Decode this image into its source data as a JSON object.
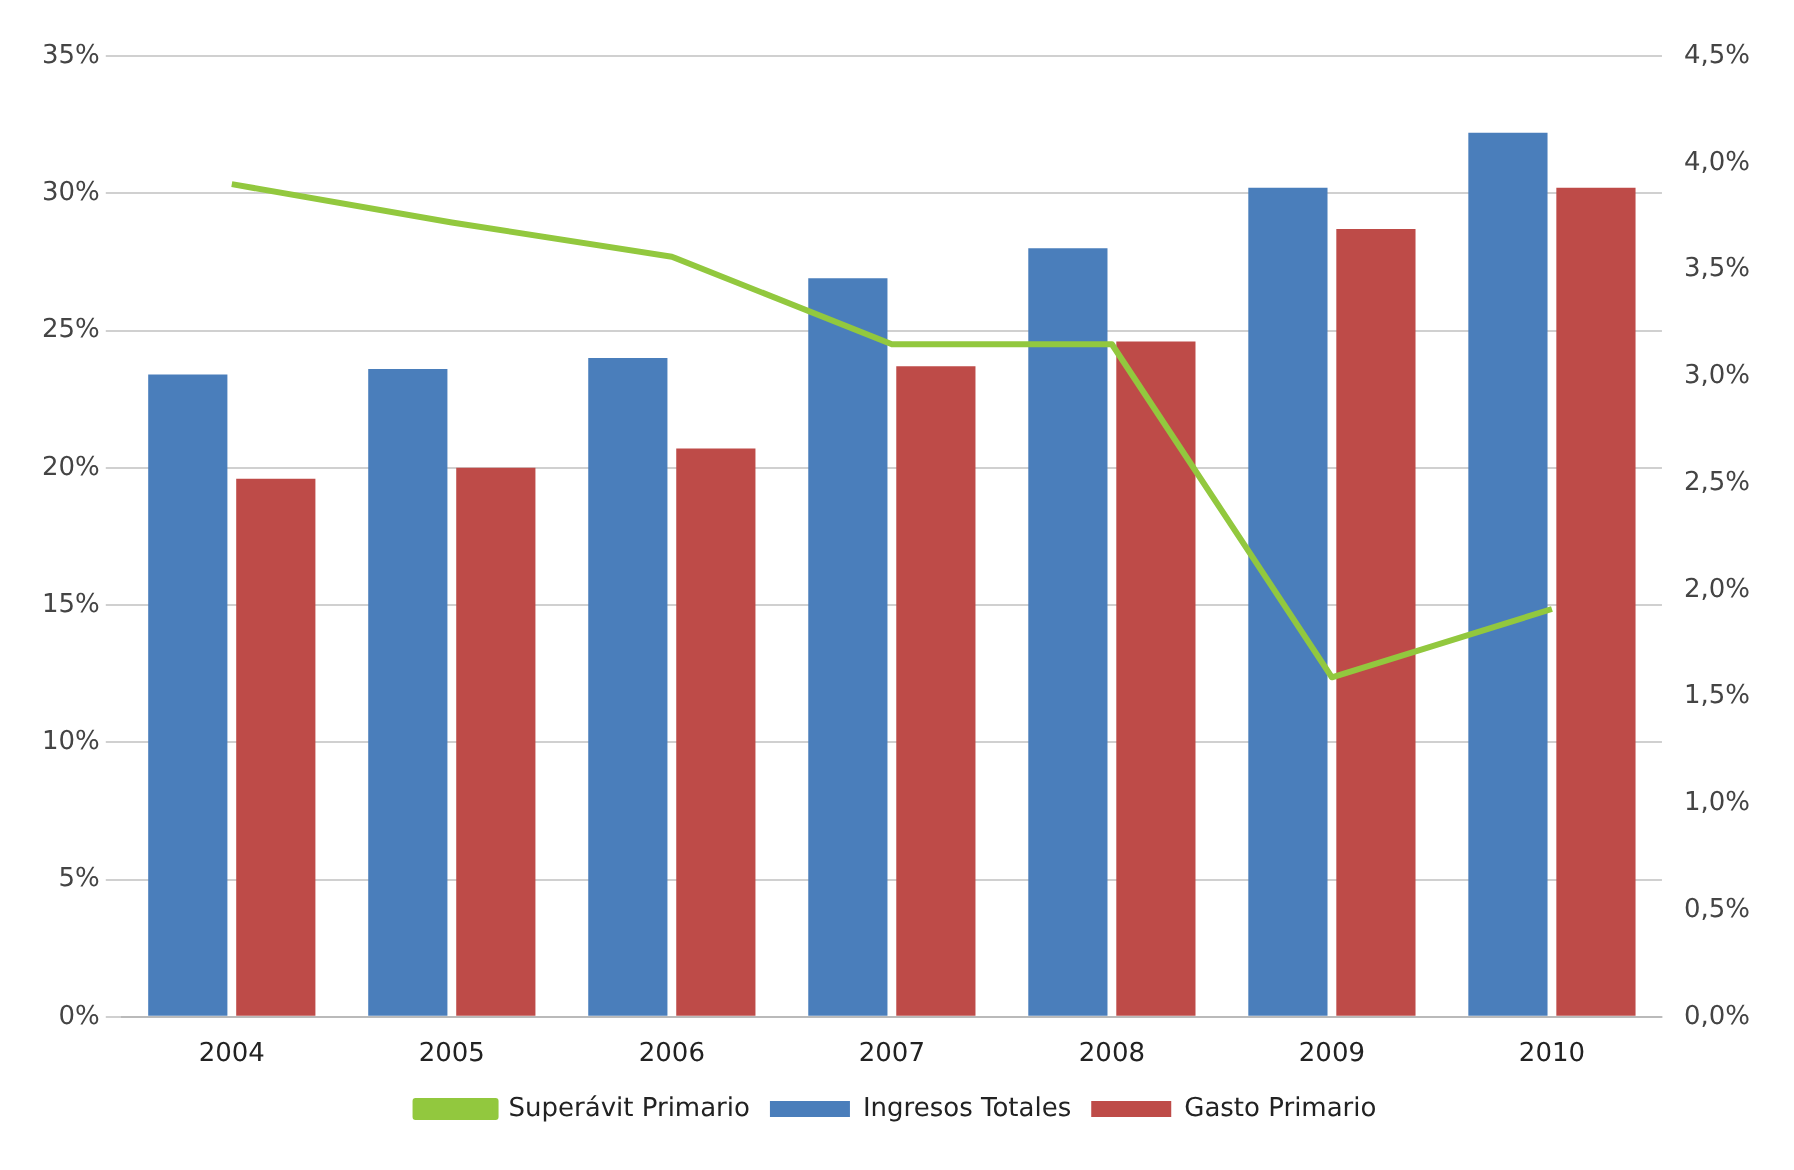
{
  "chart_data": {
    "type": "bar",
    "categories": [
      "2004",
      "2005",
      "2006",
      "2007",
      "2008",
      "2009",
      "2010"
    ],
    "series": [
      {
        "name": "Ingresos Totales",
        "color": "#4a7ebb",
        "values": [
          23.4,
          23.6,
          24.0,
          26.9,
          28.0,
          30.2,
          32.2
        ]
      },
      {
        "name": "Gasto Primario",
        "color": "#be4b48",
        "values": [
          19.6,
          20.0,
          20.7,
          23.7,
          24.6,
          28.7,
          30.2
        ]
      },
      {
        "name": "Superávit Primario",
        "type": "line",
        "axis": "y2",
        "color": "#92c83e",
        "marker": "none",
        "values": [
          3.9,
          3.72,
          3.56,
          3.15,
          3.15,
          1.59,
          1.91
        ]
      }
    ],
    "ylim": [
      0,
      35
    ],
    "yticks": [
      {
        "value": 0,
        "label": "0%"
      },
      {
        "value": 5,
        "label": "5%"
      },
      {
        "value": 10,
        "label": "10%"
      },
      {
        "value": 15,
        "label": "15%"
      },
      {
        "value": 20,
        "label": "20%"
      },
      {
        "value": 25,
        "label": "25%"
      },
      {
        "value": 30,
        "label": "30%"
      },
      {
        "value": 35,
        "label": "35%"
      }
    ],
    "y2lim": [
      0,
      4.5
    ],
    "y2ticks": [
      {
        "value": 0,
        "label": "0,0%"
      },
      {
        "value": 0.5,
        "label": "0,5%"
      },
      {
        "value": 1,
        "label": "1,0%"
      },
      {
        "value": 1.5,
        "label": "1,5%"
      },
      {
        "value": 2,
        "label": "2,0%"
      },
      {
        "value": 2.5,
        "label": "2,5%"
      },
      {
        "value": 3,
        "label": "3,0%"
      },
      {
        "value": 3.5,
        "label": "3,5%"
      },
      {
        "value": 4,
        "label": "4,0%"
      },
      {
        "value": 4.5,
        "label": "4,5%"
      }
    ],
    "grid": "y",
    "legend": "bottom"
  }
}
